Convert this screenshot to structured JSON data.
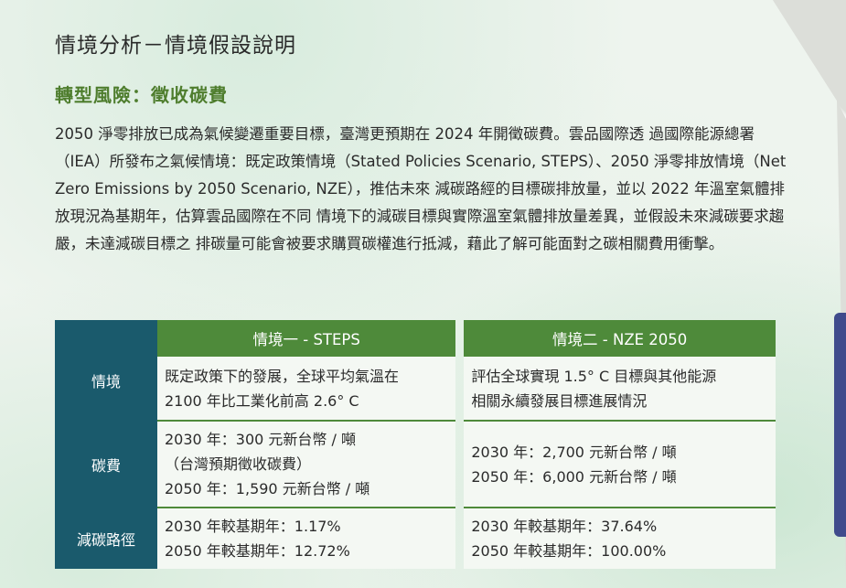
{
  "header": {
    "title": "情境分析－情境假設說明",
    "section": "轉型風險：徵收碳費"
  },
  "intro": {
    "lines": [
      "2050 淨零排放已成為氣候變遷重要目標，臺灣更預期在 2024 年開徵碳費。雲品國際透",
      "過國際能源總署（IEA）所發布之氣候情境：既定政策情境（Stated Policies Scenario,",
      "STEPS）、2050 淨零排放情境（Net Zero Emissions by 2050 Scenario, NZE），推估未來",
      "減碳路經的目標碳排放量，並以 2022 年溫室氣體排放現況為基期年，估算雲品國際在不同",
      "情境下的減碳目標與實際溫室氣體排放量差異，並假設未來減碳要求趨嚴，未達減碳目標之",
      "排碳量可能會被要求購買碳權進行抵減，藉此了解可能面對之碳相關費用衝擊。"
    ]
  },
  "table": {
    "columns": [
      "情境一 - STEPS",
      "情境二 - NZE 2050"
    ],
    "rows": [
      {
        "label": "情境",
        "steps": [
          "既定政策下的發展，全球平均氣溫在",
          "2100 年比工業化前高 2.6° C"
        ],
        "nze": [
          "評估全球實現 1.5° C 目標與其他能源",
          "相關永續發展目標進展情況"
        ]
      },
      {
        "label": "碳費",
        "steps": [
          "2030 年：300 元新台幣 / 噸",
          "（台灣預期徵收碳費）",
          "2050 年：1,590 元新台幣 / 噸"
        ],
        "nze": [
          "2030 年：2,700 元新台幣 / 噸",
          "2050 年：6,000 元新台幣 / 噸"
        ]
      },
      {
        "label": "減碳路徑",
        "steps": [
          "2030 年較基期年：1.17%",
          "2050 年較基期年：12.72%"
        ],
        "nze": [
          "2030 年較基期年：37.64%",
          "2050 年較基期年：100.00%"
        ]
      }
    ]
  }
}
